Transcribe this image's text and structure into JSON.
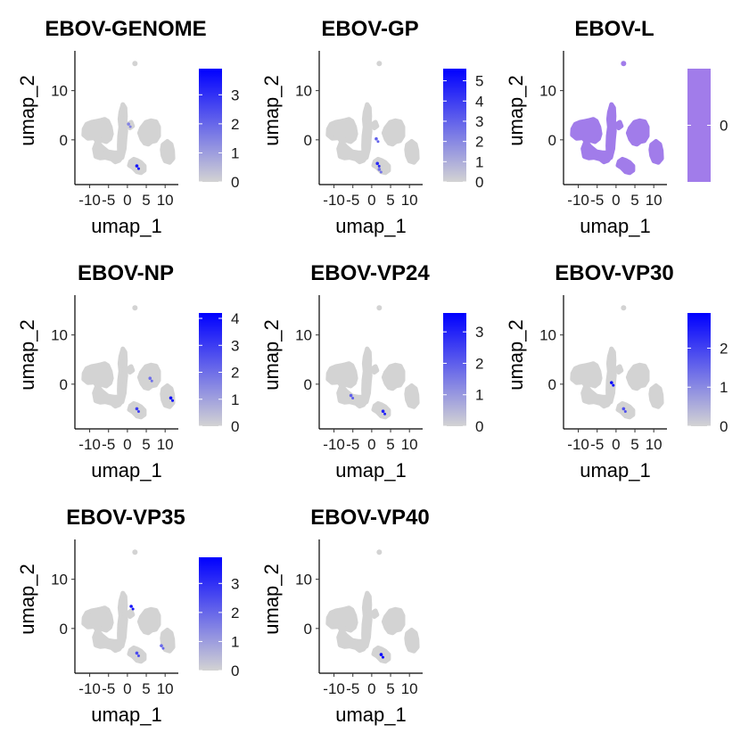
{
  "chart_data": [
    {
      "type": "scatter",
      "title": "EBOV-GENOME",
      "xlabel": "umap_1",
      "ylabel": "umap_2",
      "x_ticks": [
        "-10",
        "-5",
        "0",
        "5",
        "10"
      ],
      "y_ticks": [
        "0",
        "10"
      ],
      "legend": {
        "ticks": [
          "0",
          "1",
          "2",
          "3"
        ],
        "min": 0,
        "max": 3.9,
        "colors": [
          "#d3d3d3",
          "#0000ff"
        ]
      },
      "highlights": [
        {
          "x": 2.5,
          "y": -5.3,
          "value": 3.5
        },
        {
          "x": 0.3,
          "y": 3.2,
          "value": 1.5
        }
      ]
    },
    {
      "type": "scatter",
      "title": "EBOV-GP",
      "xlabel": "umap_1",
      "ylabel": "umap_2",
      "x_ticks": [
        "-10",
        "-5",
        "0",
        "5",
        "10"
      ],
      "y_ticks": [
        "0",
        "10"
      ],
      "legend": {
        "ticks": [
          "0",
          "1",
          "2",
          "3",
          "4",
          "5"
        ],
        "min": 0,
        "max": 5.6,
        "colors": [
          "#d3d3d3",
          "#0000ff"
        ]
      },
      "highlights": [
        {
          "x": 1.5,
          "y": -4.8,
          "value": 4.5
        },
        {
          "x": 1.2,
          "y": 0.2,
          "value": 3.0
        },
        {
          "x": 2.0,
          "y": -6.0,
          "value": 2.5
        }
      ]
    },
    {
      "type": "scatter",
      "title": "EBOV-L",
      "xlabel": "umap_1",
      "ylabel": "umap_2",
      "x_ticks": [
        "-10",
        "-5",
        "0",
        "5",
        "10"
      ],
      "y_ticks": [
        "0",
        "10"
      ],
      "legend": {
        "ticks": [
          "0"
        ],
        "min": 0,
        "max": 0,
        "colors": [
          "#a17cea",
          "#a17cea"
        ]
      },
      "uniform_color": "#a17cea",
      "highlights": []
    },
    {
      "type": "scatter",
      "title": "EBOV-NP",
      "xlabel": "umap_1",
      "ylabel": "umap_2",
      "x_ticks": [
        "-10",
        "-5",
        "0",
        "5",
        "10"
      ],
      "y_ticks": [
        "0",
        "10"
      ],
      "legend": {
        "ticks": [
          "0",
          "1",
          "2",
          "3",
          "4"
        ],
        "min": 0,
        "max": 4.2,
        "colors": [
          "#d3d3d3",
          "#0000ff"
        ]
      },
      "highlights": [
        {
          "x": 11.5,
          "y": -2.8,
          "value": 4.0
        },
        {
          "x": 2.5,
          "y": -5.0,
          "value": 3.0
        },
        {
          "x": 6.0,
          "y": 1.2,
          "value": 2.0
        }
      ]
    },
    {
      "type": "scatter",
      "title": "EBOV-VP24",
      "xlabel": "umap_1",
      "ylabel": "umap_2",
      "x_ticks": [
        "-10",
        "-5",
        "0",
        "5",
        "10"
      ],
      "y_ticks": [
        "0",
        "10"
      ],
      "legend": {
        "ticks": [
          "0",
          "1",
          "2",
          "3"
        ],
        "min": 0,
        "max": 3.6,
        "colors": [
          "#d3d3d3",
          "#0000ff"
        ]
      },
      "highlights": [
        {
          "x": 3.0,
          "y": -5.5,
          "value": 3.0
        },
        {
          "x": -5.5,
          "y": -2.3,
          "value": 2.0
        }
      ]
    },
    {
      "type": "scatter",
      "title": "EBOV-VP30",
      "xlabel": "umap_1",
      "ylabel": "umap_2",
      "x_ticks": [
        "-10",
        "-5",
        "0",
        "5",
        "10"
      ],
      "y_ticks": [
        "0",
        "10"
      ],
      "legend": {
        "ticks": [
          "0",
          "1",
          "2"
        ],
        "min": 0,
        "max": 2.9,
        "colors": [
          "#d3d3d3",
          "#0000ff"
        ]
      },
      "highlights": [
        {
          "x": -1.2,
          "y": 0.3,
          "value": 2.8
        },
        {
          "x": 2.0,
          "y": -5.0,
          "value": 1.8
        }
      ]
    },
    {
      "type": "scatter",
      "title": "EBOV-VP35",
      "xlabel": "umap_1",
      "ylabel": "umap_2",
      "x_ticks": [
        "-10",
        "-5",
        "0",
        "5",
        "10"
      ],
      "y_ticks": [
        "0",
        "10"
      ],
      "legend": {
        "ticks": [
          "0",
          "1",
          "2",
          "3"
        ],
        "min": 0,
        "max": 3.9,
        "colors": [
          "#d3d3d3",
          "#0000ff"
        ]
      },
      "highlights": [
        {
          "x": 1.0,
          "y": 4.5,
          "value": 3.5
        },
        {
          "x": 2.5,
          "y": -5.0,
          "value": 2.5
        },
        {
          "x": 9.0,
          "y": -3.5,
          "value": 2.0
        }
      ]
    },
    {
      "type": "scatter",
      "title": "EBOV-VP40",
      "xlabel": "umap_1",
      "ylabel": "umap_2",
      "x_ticks": [
        "-10",
        "-5",
        "0",
        "5",
        "10"
      ],
      "y_ticks": [
        "0",
        "10"
      ],
      "legend": null,
      "uniform_color": "#d3d3d3",
      "highlights": [
        {
          "x": 2.5,
          "y": -5.3,
          "value": 3.5
        }
      ]
    }
  ]
}
